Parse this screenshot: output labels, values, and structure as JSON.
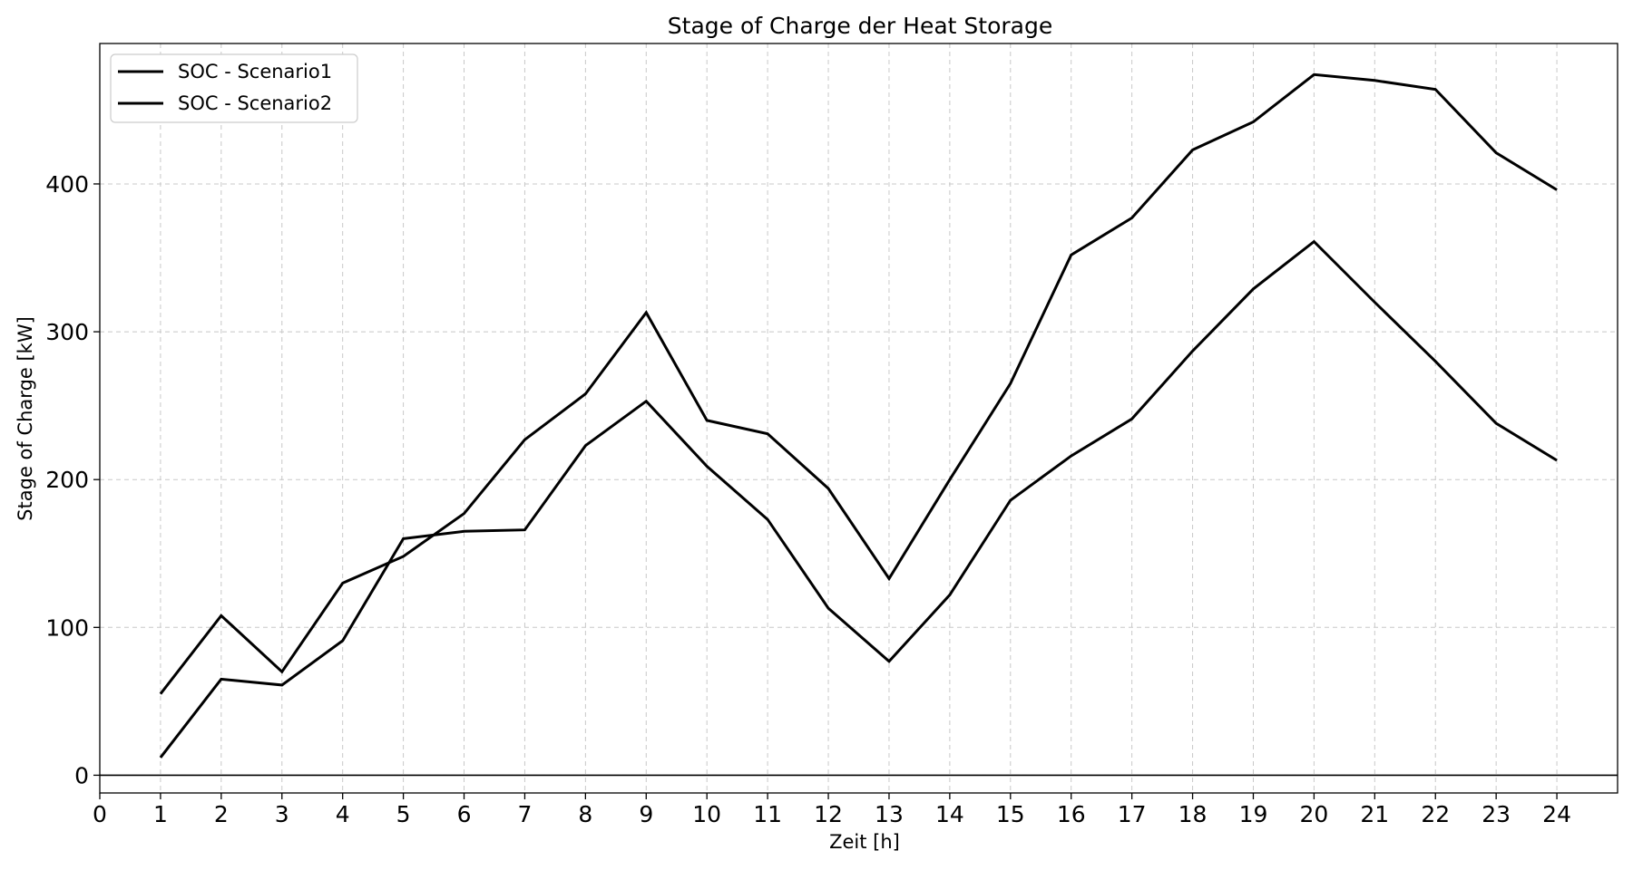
{
  "chart_data": {
    "type": "line",
    "title": "Stage of Charge der Heat Storage",
    "xlabel": "Zeit [h]",
    "ylabel": "Stage of Charge [kW]",
    "xlim": [
      0,
      25
    ],
    "ylim": [
      -12,
      495
    ],
    "xticks": [
      0,
      1,
      2,
      3,
      4,
      5,
      6,
      7,
      8,
      9,
      10,
      11,
      12,
      13,
      14,
      15,
      16,
      17,
      18,
      19,
      20,
      21,
      22,
      23,
      24
    ],
    "yticks": [
      0,
      100,
      200,
      300,
      400
    ],
    "grid": true,
    "legend_position": "top-left",
    "line_color": "#000000",
    "x": [
      1,
      2,
      3,
      4,
      5,
      6,
      7,
      8,
      9,
      10,
      11,
      12,
      13,
      14,
      15,
      16,
      17,
      18,
      19,
      20,
      21,
      22,
      23,
      24
    ],
    "series": [
      {
        "name": "SOC - Scenario1",
        "values": [
          55,
          108,
          70,
          130,
          148,
          177,
          227,
          258,
          313,
          240,
          231,
          194,
          133,
          200,
          265,
          352,
          377,
          423,
          442,
          474,
          470,
          464,
          421,
          396
        ]
      },
      {
        "name": "SOC - Scenario2",
        "values": [
          12,
          65,
          61,
          91,
          160,
          165,
          166,
          223,
          253,
          209,
          173,
          113,
          77,
          122,
          186,
          216,
          241,
          287,
          329,
          361,
          320,
          280,
          238,
          213
        ]
      }
    ]
  }
}
